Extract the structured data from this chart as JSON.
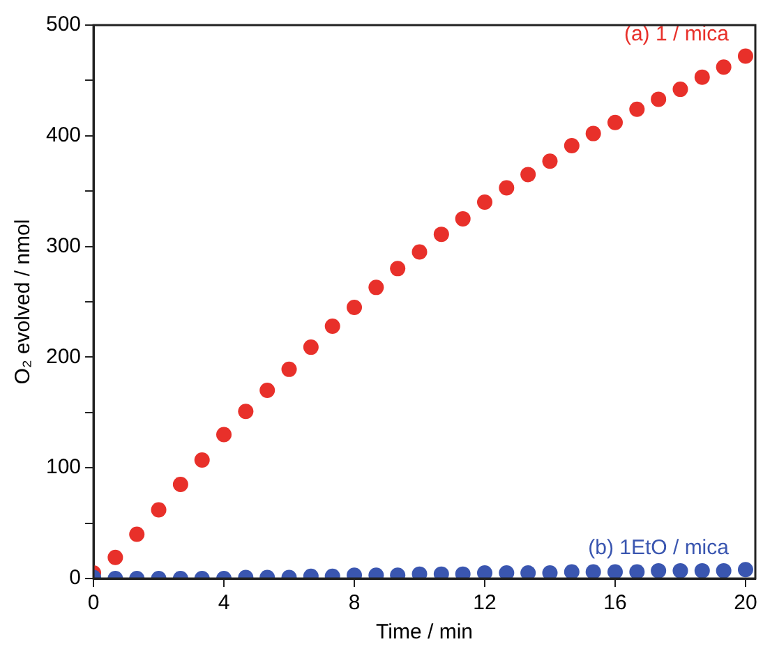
{
  "chart_data": {
    "type": "scatter",
    "xlabel": "Time / min",
    "ylabel": "O₂ evolved / nmol",
    "x": [
      0,
      0.67,
      1.33,
      2,
      2.67,
      3.33,
      4,
      4.67,
      5.33,
      6,
      6.67,
      7.33,
      8,
      8.67,
      9.33,
      10,
      10.67,
      11.33,
      12,
      12.67,
      13.33,
      14,
      14.67,
      15.33,
      16,
      16.67,
      17.33,
      18,
      18.67,
      19.33,
      20
    ],
    "series": [
      {
        "name": "(a) 1 / mica",
        "color": "#e8302a",
        "values": [
          5,
          19,
          40,
          62,
          85,
          107,
          130,
          151,
          170,
          189,
          209,
          228,
          245,
          263,
          280,
          295,
          311,
          325,
          340,
          353,
          365,
          377,
          391,
          402,
          412,
          424,
          433,
          442,
          453,
          462,
          472
        ]
      },
      {
        "name": "(b) 1EtO / mica",
        "color": "#3a56b0",
        "values": [
          1,
          0,
          0,
          0,
          0,
          0,
          0,
          1,
          1,
          1,
          2,
          2,
          3,
          3,
          3,
          4,
          4,
          4,
          5,
          5,
          5,
          5,
          6,
          6,
          6,
          6,
          7,
          7,
          7,
          7,
          8
        ]
      }
    ],
    "xlim": [
      0,
      20.3
    ],
    "xticks": [
      0,
      4,
      8,
      12,
      16,
      20
    ],
    "ylim": [
      0,
      500
    ],
    "yticks": [
      0,
      {
        "value": 50,
        "label": null
      },
      100,
      {
        "value": 150,
        "label": null
      },
      200,
      {
        "value": 250,
        "label": null
      },
      300,
      {
        "value": 350,
        "label": null
      },
      400,
      {
        "value": 450,
        "label": null
      },
      500
    ],
    "marker": "circle",
    "grid": false,
    "legend": false
  }
}
